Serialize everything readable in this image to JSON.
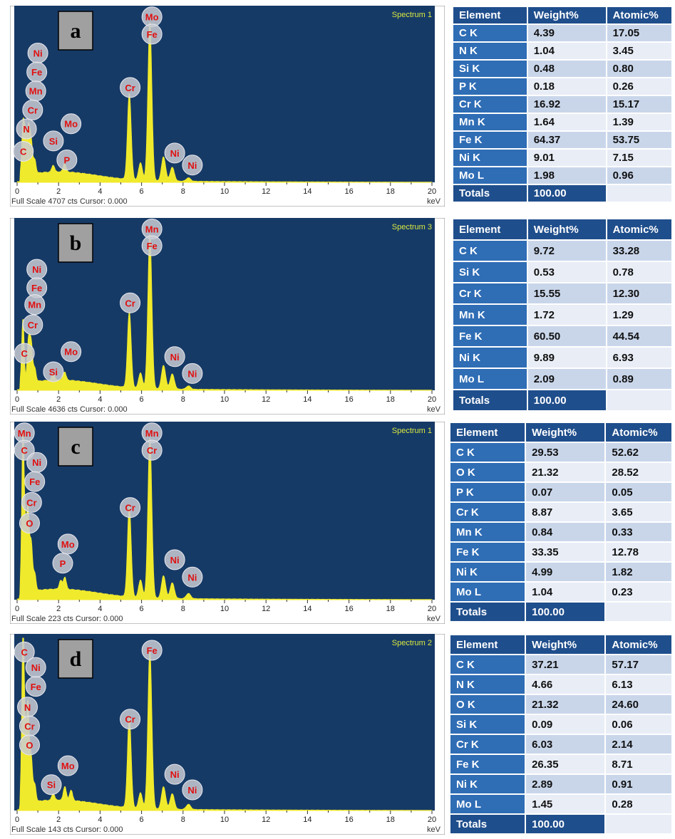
{
  "figure_letters": [
    "a",
    "b",
    "c",
    "d"
  ],
  "table_headers": [
    "Element",
    "Weight%",
    "Atomic%"
  ],
  "totals_label": "Totals",
  "x_axis_unit": "keV",
  "colors": {
    "plot_bg": "#163a66",
    "spectrum": "#f0ea2c",
    "label_text": "#e01010",
    "table_header": "#1f4e8c",
    "table_element": "#2f6db5"
  },
  "chart_data": [
    {
      "type": "line",
      "spectrum_name": "Spectrum 1",
      "footer": "Full Scale 4707 cts Cursor: 0.000",
      "xlabel": "keV",
      "xlim": [
        0,
        20
      ],
      "x_ticks": [
        "0",
        "2",
        "4",
        "6",
        "8",
        "10",
        "12",
        "14",
        "16",
        "18",
        "20"
      ],
      "peaks": [
        {
          "x": 0.28,
          "height": 0.28
        },
        {
          "x": 0.39,
          "height": 0.22
        },
        {
          "x": 0.52,
          "height": 0.16
        },
        {
          "x": 0.57,
          "height": 0.12
        },
        {
          "x": 0.64,
          "height": 0.1
        },
        {
          "x": 0.7,
          "height": 0.12
        },
        {
          "x": 0.85,
          "height": 0.08
        },
        {
          "x": 1.74,
          "height": 0.04
        },
        {
          "x": 2.29,
          "height": 0.05
        },
        {
          "x": 5.41,
          "height": 0.5
        },
        {
          "x": 5.95,
          "height": 0.1
        },
        {
          "x": 6.4,
          "height": 0.92
        },
        {
          "x": 7.06,
          "height": 0.14
        },
        {
          "x": 7.48,
          "height": 0.08
        },
        {
          "x": 8.26,
          "height": 0.02
        }
      ],
      "peak_labels": [
        {
          "text": "Mo",
          "x": 6.5,
          "level": 0.96
        },
        {
          "text": "Fe",
          "x": 6.5,
          "level": 0.86
        },
        {
          "text": "Cr",
          "x": 5.45,
          "level": 0.55
        },
        {
          "text": "Ni",
          "x": 1.0,
          "level": 0.75
        },
        {
          "text": "Fe",
          "x": 0.95,
          "level": 0.64
        },
        {
          "text": "Mn",
          "x": 0.9,
          "level": 0.53
        },
        {
          "text": "Cr",
          "x": 0.75,
          "level": 0.42
        },
        {
          "text": "N",
          "x": 0.45,
          "level": 0.31
        },
        {
          "text": "C",
          "x": 0.3,
          "level": 0.18
        },
        {
          "text": "Mo",
          "x": 2.6,
          "level": 0.34
        },
        {
          "text": "Si",
          "x": 1.75,
          "level": 0.24
        },
        {
          "text": "P",
          "x": 2.4,
          "level": 0.13
        },
        {
          "text": "Ni",
          "x": 7.6,
          "level": 0.17
        },
        {
          "text": "Ni",
          "x": 8.45,
          "level": 0.1
        }
      ],
      "table": {
        "rows": [
          {
            "element": "C K",
            "weight": "4.39",
            "atomic": "17.05"
          },
          {
            "element": "N K",
            "weight": "1.04",
            "atomic": "3.45"
          },
          {
            "element": "Si K",
            "weight": "0.48",
            "atomic": "0.80"
          },
          {
            "element": "P K",
            "weight": "0.18",
            "atomic": "0.26"
          },
          {
            "element": "Cr K",
            "weight": "16.92",
            "atomic": "15.17"
          },
          {
            "element": "Mn K",
            "weight": "1.64",
            "atomic": "1.39"
          },
          {
            "element": "Fe K",
            "weight": "64.37",
            "atomic": "53.75"
          },
          {
            "element": "Ni K",
            "weight": "9.01",
            "atomic": "7.15"
          },
          {
            "element": "Mo L",
            "weight": "1.98",
            "atomic": "0.96"
          }
        ],
        "total_weight": "100.00"
      }
    },
    {
      "type": "line",
      "spectrum_name": "Spectrum 3",
      "footer": "Full Scale 4636 cts Cursor: 0.000",
      "xlabel": "keV",
      "xlim": [
        0,
        20
      ],
      "x_ticks": [
        "0",
        "2",
        "4",
        "6",
        "8",
        "10",
        "12",
        "14",
        "16",
        "18",
        "20"
      ],
      "peaks": [
        {
          "x": 0.28,
          "height": 0.38
        },
        {
          "x": 0.52,
          "height": 0.12
        },
        {
          "x": 0.57,
          "height": 0.14
        },
        {
          "x": 0.64,
          "height": 0.1
        },
        {
          "x": 0.7,
          "height": 0.16
        },
        {
          "x": 0.85,
          "height": 0.08
        },
        {
          "x": 1.74,
          "height": 0.04
        },
        {
          "x": 2.29,
          "height": 0.05
        },
        {
          "x": 5.41,
          "height": 0.45
        },
        {
          "x": 5.95,
          "height": 0.09
        },
        {
          "x": 6.4,
          "height": 0.92
        },
        {
          "x": 7.06,
          "height": 0.14
        },
        {
          "x": 7.48,
          "height": 0.09
        },
        {
          "x": 8.26,
          "height": 0.02
        }
      ],
      "peak_labels": [
        {
          "text": "Mn",
          "x": 6.5,
          "level": 0.96
        },
        {
          "text": "Fe",
          "x": 6.5,
          "level": 0.86
        },
        {
          "text": "Cr",
          "x": 5.45,
          "level": 0.52
        },
        {
          "text": "Ni",
          "x": 0.95,
          "level": 0.72
        },
        {
          "text": "Fe",
          "x": 0.95,
          "level": 0.61
        },
        {
          "text": "Mn",
          "x": 0.85,
          "level": 0.51
        },
        {
          "text": "Cr",
          "x": 0.75,
          "level": 0.39
        },
        {
          "text": "C",
          "x": 0.35,
          "level": 0.22
        },
        {
          "text": "Mo",
          "x": 2.6,
          "level": 0.23
        },
        {
          "text": "Si",
          "x": 1.75,
          "level": 0.11
        },
        {
          "text": "Ni",
          "x": 7.6,
          "level": 0.2
        },
        {
          "text": "Ni",
          "x": 8.45,
          "level": 0.1
        }
      ],
      "table": {
        "rows": [
          {
            "element": "C K",
            "weight": "9.72",
            "atomic": "33.28"
          },
          {
            "element": "Si K",
            "weight": "0.53",
            "atomic": "0.78"
          },
          {
            "element": "Cr K",
            "weight": "15.55",
            "atomic": "12.30"
          },
          {
            "element": "Mn K",
            "weight": "1.72",
            "atomic": "1.29"
          },
          {
            "element": "Fe K",
            "weight": "60.50",
            "atomic": "44.54"
          },
          {
            "element": "Ni K",
            "weight": "9.89",
            "atomic": "6.93"
          },
          {
            "element": "Mo L",
            "weight": "2.09",
            "atomic": "0.89"
          }
        ],
        "total_weight": "100.00"
      }
    },
    {
      "type": "line",
      "spectrum_name": "Spectrum 1",
      "footer": "Full Scale 223 cts Cursor: 0.000",
      "xlabel": "keV",
      "xlim": [
        0,
        20
      ],
      "x_ticks": [
        "0",
        "2",
        "4",
        "6",
        "8",
        "10",
        "12",
        "14",
        "16",
        "18",
        "20"
      ],
      "peaks": [
        {
          "x": 0.28,
          "height": 0.9
        },
        {
          "x": 0.4,
          "height": 0.3
        },
        {
          "x": 0.52,
          "height": 0.45
        },
        {
          "x": 0.64,
          "height": 0.15
        },
        {
          "x": 0.7,
          "height": 0.18
        },
        {
          "x": 0.85,
          "height": 0.1
        },
        {
          "x": 2.1,
          "height": 0.05
        },
        {
          "x": 2.3,
          "height": 0.07
        },
        {
          "x": 5.41,
          "height": 0.52
        },
        {
          "x": 5.95,
          "height": 0.1
        },
        {
          "x": 6.4,
          "height": 0.92
        },
        {
          "x": 7.06,
          "height": 0.13
        },
        {
          "x": 7.48,
          "height": 0.09
        },
        {
          "x": 8.26,
          "height": 0.03
        }
      ],
      "peak_labels": [
        {
          "text": "Mn",
          "x": 0.35,
          "level": 0.96
        },
        {
          "text": "C",
          "x": 0.35,
          "level": 0.86
        },
        {
          "text": "Ni",
          "x": 0.95,
          "level": 0.79
        },
        {
          "text": "Fe",
          "x": 0.85,
          "level": 0.68
        },
        {
          "text": "Cr",
          "x": 0.7,
          "level": 0.56
        },
        {
          "text": "O",
          "x": 0.6,
          "level": 0.44
        },
        {
          "text": "Mn",
          "x": 6.5,
          "level": 0.96
        },
        {
          "text": "Cr",
          "x": 6.5,
          "level": 0.86
        },
        {
          "text": "Cr",
          "x": 5.45,
          "level": 0.53
        },
        {
          "text": "Mo",
          "x": 2.45,
          "level": 0.32
        },
        {
          "text": "P",
          "x": 2.2,
          "level": 0.21
        },
        {
          "text": "Ni",
          "x": 7.6,
          "level": 0.23
        },
        {
          "text": "Ni",
          "x": 8.45,
          "level": 0.13
        }
      ],
      "table": {
        "rows": [
          {
            "element": "C K",
            "weight": "29.53",
            "atomic": "52.62"
          },
          {
            "element": "O K",
            "weight": "21.32",
            "atomic": "28.52"
          },
          {
            "element": "P K",
            "weight": "0.07",
            "atomic": "0.05"
          },
          {
            "element": "Cr K",
            "weight": "8.87",
            "atomic": "3.65"
          },
          {
            "element": "Mn K",
            "weight": "0.84",
            "atomic": "0.33"
          },
          {
            "element": "Fe K",
            "weight": "33.35",
            "atomic": "12.78"
          },
          {
            "element": "Ni K",
            "weight": "4.99",
            "atomic": "1.82"
          },
          {
            "element": "Mo L",
            "weight": "1.04",
            "atomic": "0.23"
          }
        ],
        "total_weight": "100.00"
      }
    },
    {
      "type": "line",
      "spectrum_name": "Spectrum 2",
      "footer": "Full Scale 143 cts Cursor: 0.000",
      "xlabel": "keV",
      "xlim": [
        0,
        20
      ],
      "x_ticks": [
        "0",
        "2",
        "4",
        "6",
        "8",
        "10",
        "12",
        "14",
        "16",
        "18",
        "20"
      ],
      "peaks": [
        {
          "x": 0.28,
          "height": 0.95
        },
        {
          "x": 0.39,
          "height": 0.35
        },
        {
          "x": 0.52,
          "height": 0.55
        },
        {
          "x": 0.64,
          "height": 0.15
        },
        {
          "x": 0.7,
          "height": 0.16
        },
        {
          "x": 0.85,
          "height": 0.1
        },
        {
          "x": 1.74,
          "height": 0.04
        },
        {
          "x": 2.3,
          "height": 0.08
        },
        {
          "x": 2.6,
          "height": 0.06
        },
        {
          "x": 5.41,
          "height": 0.53
        },
        {
          "x": 5.95,
          "height": 0.09
        },
        {
          "x": 6.4,
          "height": 0.92
        },
        {
          "x": 7.06,
          "height": 0.13
        },
        {
          "x": 7.48,
          "height": 0.09
        },
        {
          "x": 8.26,
          "height": 0.03
        }
      ],
      "peak_labels": [
        {
          "text": "C",
          "x": 0.35,
          "level": 0.92
        },
        {
          "text": "Ni",
          "x": 0.9,
          "level": 0.83
        },
        {
          "text": "Fe",
          "x": 0.9,
          "level": 0.72
        },
        {
          "text": "N",
          "x": 0.5,
          "level": 0.6
        },
        {
          "text": "Cr",
          "x": 0.6,
          "level": 0.49
        },
        {
          "text": "O",
          "x": 0.6,
          "level": 0.38
        },
        {
          "text": "Fe",
          "x": 6.5,
          "level": 0.93
        },
        {
          "text": "Cr",
          "x": 5.45,
          "level": 0.53
        },
        {
          "text": "Mo",
          "x": 2.45,
          "level": 0.26
        },
        {
          "text": "Si",
          "x": 1.65,
          "level": 0.15
        },
        {
          "text": "Ni",
          "x": 7.6,
          "level": 0.21
        },
        {
          "text": "Ni",
          "x": 8.45,
          "level": 0.12
        }
      ],
      "table": {
        "rows": [
          {
            "element": "C K",
            "weight": "37.21",
            "atomic": "57.17"
          },
          {
            "element": "N K",
            "weight": "4.66",
            "atomic": "6.13"
          },
          {
            "element": "O K",
            "weight": "21.32",
            "atomic": "24.60"
          },
          {
            "element": "Si K",
            "weight": "0.09",
            "atomic": "0.06"
          },
          {
            "element": "Cr K",
            "weight": "6.03",
            "atomic": "2.14"
          },
          {
            "element": "Fe K",
            "weight": "26.35",
            "atomic": "8.71"
          },
          {
            "element": "Ni K",
            "weight": "2.89",
            "atomic": "0.91"
          },
          {
            "element": "Mo L",
            "weight": "1.45",
            "atomic": "0.28"
          }
        ],
        "total_weight": "100.00"
      }
    }
  ]
}
